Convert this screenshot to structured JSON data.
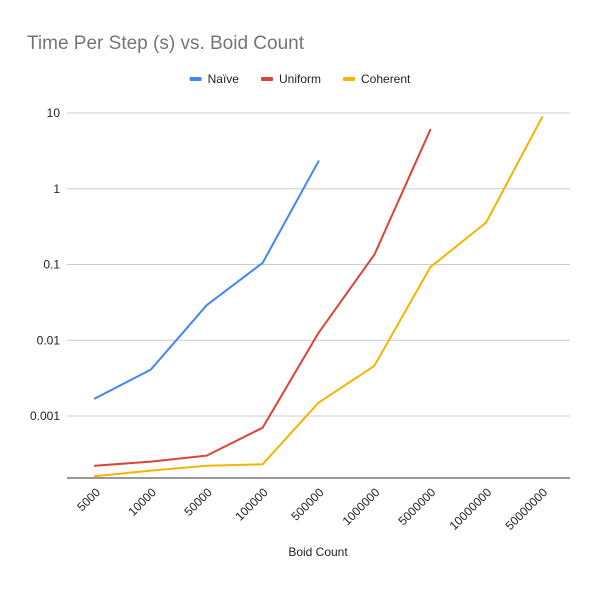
{
  "chart_data": {
    "type": "line",
    "title": "Time Per Step (s) vs. Boid Count",
    "xlabel": "Boid Count",
    "ylabel": "",
    "y_scale": "log",
    "ylim": [
      0.00015,
      12
    ],
    "y_ticks": [
      "0.001",
      "0.01",
      "0.1",
      "1",
      "10"
    ],
    "categories": [
      "5000",
      "10000",
      "50000",
      "100000",
      "500000",
      "1000000",
      "5000000",
      "10000000",
      "50000000"
    ],
    "grid": true,
    "legend_position": "top",
    "series": [
      {
        "name": "Naïve",
        "color": "#4285F4",
        "values": [
          0.0017,
          0.0041,
          0.029,
          0.105,
          2.3,
          null,
          null,
          null,
          null
        ]
      },
      {
        "name": "Uniform",
        "color": "#DB4437",
        "values": [
          0.00022,
          0.00025,
          0.0003,
          0.0007,
          0.0125,
          0.135,
          6.0,
          null,
          null
        ]
      },
      {
        "name": "Coherent",
        "color": "#F4B400",
        "values": [
          0.00016,
          0.00019,
          0.00022,
          0.00023,
          0.0015,
          0.0046,
          0.092,
          0.36,
          8.8
        ]
      }
    ]
  }
}
